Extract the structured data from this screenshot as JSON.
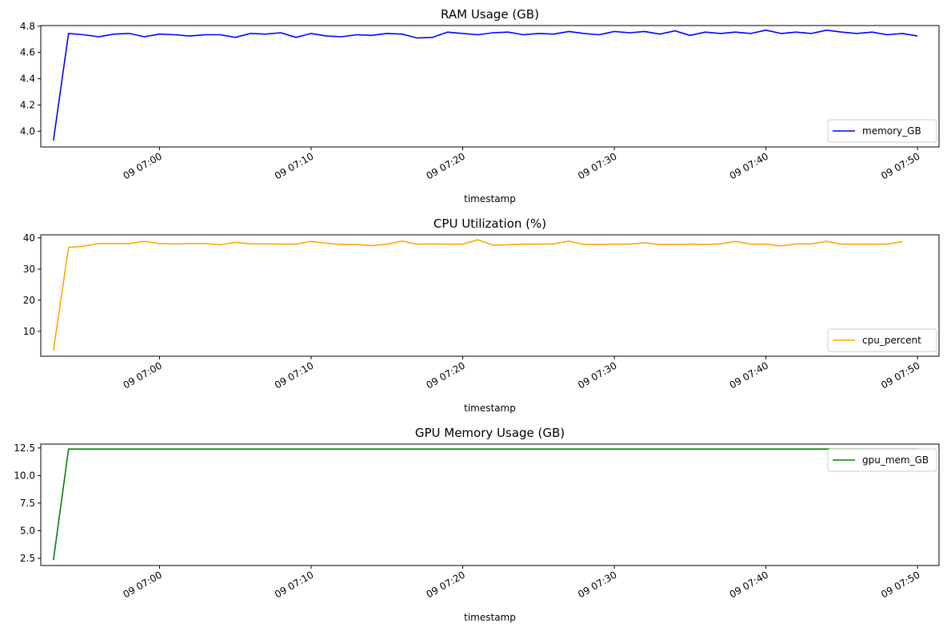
{
  "chart_data": [
    {
      "type": "line",
      "title": "RAM Usage (GB)",
      "xlabel": "timestamp",
      "ylabel": "",
      "x_start": "06:53",
      "x_step_minutes": 1,
      "xlim": [
        "06:52:10",
        "07:51:25"
      ],
      "ylim": [
        3.88,
        4.805
      ],
      "yticks": [
        4.0,
        4.2,
        4.4,
        4.6,
        4.8
      ],
      "ytick_labels": [
        "4.0",
        "4.2",
        "4.4",
        "4.6",
        "4.8"
      ],
      "xtick_labels": [
        "09 07:00",
        "09 07:10",
        "09 07:20",
        "09 07:30",
        "09 07:40",
        "09 07:50"
      ],
      "grid": false,
      "legend": "lower right",
      "series": [
        {
          "name": "memory_GB",
          "color": "#0000ff",
          "values": [
            3.93,
            4.745,
            4.735,
            4.72,
            4.74,
            4.745,
            4.72,
            4.74,
            4.735,
            4.725,
            4.735,
            4.735,
            4.715,
            4.745,
            4.74,
            4.75,
            4.715,
            4.745,
            4.725,
            4.72,
            4.735,
            4.73,
            4.745,
            4.74,
            4.71,
            4.715,
            4.755,
            4.745,
            4.735,
            4.75,
            4.755,
            4.735,
            4.745,
            4.74,
            4.76,
            4.745,
            4.735,
            4.76,
            4.75,
            4.76,
            4.74,
            4.765,
            4.73,
            4.755,
            4.745,
            4.755,
            4.745,
            4.77,
            4.745,
            4.755,
            4.745,
            4.77,
            4.755,
            4.745,
            4.755,
            4.735,
            4.745,
            4.725
          ]
        }
      ]
    },
    {
      "type": "line",
      "title": "CPU Utilization (%)",
      "xlabel": "timestamp",
      "ylabel": "",
      "x_start": "06:53",
      "x_step_minutes": 1,
      "xlim": [
        "06:52:10",
        "07:51:25"
      ],
      "ylim": [
        2.0,
        41.0
      ],
      "yticks": [
        10,
        20,
        30,
        40
      ],
      "ytick_labels": [
        "10",
        "20",
        "30",
        "40"
      ],
      "xtick_labels": [
        "09 07:00",
        "09 07:10",
        "09 07:20",
        "09 07:30",
        "09 07:40",
        "09 07:50"
      ],
      "grid": false,
      "legend": "lower right",
      "series": [
        {
          "name": "cpu_percent",
          "color": "#ffa500",
          "values": [
            3.8,
            37.0,
            37.3,
            38.2,
            38.2,
            38.2,
            38.9,
            38.2,
            38.1,
            38.2,
            38.2,
            37.8,
            38.6,
            38.1,
            38.1,
            38.0,
            38.0,
            38.9,
            38.3,
            37.9,
            37.9,
            37.5,
            38.0,
            39.0,
            38.0,
            38.1,
            38.0,
            38.0,
            39.4,
            37.7,
            37.8,
            38.0,
            38.0,
            38.1,
            39.0,
            37.9,
            37.9,
            38.0,
            38.0,
            38.4,
            37.9,
            37.9,
            38.0,
            37.9,
            38.1,
            38.9,
            38.0,
            38.0,
            37.4,
            38.1,
            38.1,
            38.9,
            38.0,
            38.0,
            38.0,
            38.0,
            38.8
          ]
        }
      ]
    },
    {
      "type": "line",
      "title": "GPU Memory Usage (GB)",
      "xlabel": "timestamp",
      "ylabel": "",
      "x_start": "06:53",
      "x_step_minutes": 1,
      "xlim": [
        "06:52:10",
        "07:51:25"
      ],
      "ylim": [
        1.85,
        12.85
      ],
      "yticks": [
        2.5,
        5.0,
        7.5,
        10.0,
        12.5
      ],
      "ytick_labels": [
        "2.5",
        "5.0",
        "7.5",
        "10.0",
        "12.5"
      ],
      "xtick_labels": [
        "09 07:00",
        "09 07:10",
        "09 07:20",
        "09 07:30",
        "09 07:40",
        "09 07:50"
      ],
      "grid": false,
      "legend": "upper right",
      "series": [
        {
          "name": "gpu_mem_GB",
          "color": "#008000",
          "values": [
            2.35,
            12.4,
            12.4,
            12.4,
            12.4,
            12.4,
            12.4,
            12.4,
            12.4,
            12.4,
            12.4,
            12.4,
            12.4,
            12.4,
            12.4,
            12.4,
            12.4,
            12.4,
            12.4,
            12.4,
            12.4,
            12.4,
            12.4,
            12.4,
            12.4,
            12.4,
            12.4,
            12.4,
            12.4,
            12.4,
            12.4,
            12.4,
            12.4,
            12.4,
            12.4,
            12.4,
            12.4,
            12.4,
            12.4,
            12.4,
            12.4,
            12.4,
            12.4,
            12.4,
            12.4,
            12.4,
            12.4,
            12.4,
            12.4,
            12.4,
            12.4,
            12.4,
            12.4,
            12.4,
            12.4,
            12.4,
            12.4,
            12.4
          ]
        }
      ]
    }
  ]
}
